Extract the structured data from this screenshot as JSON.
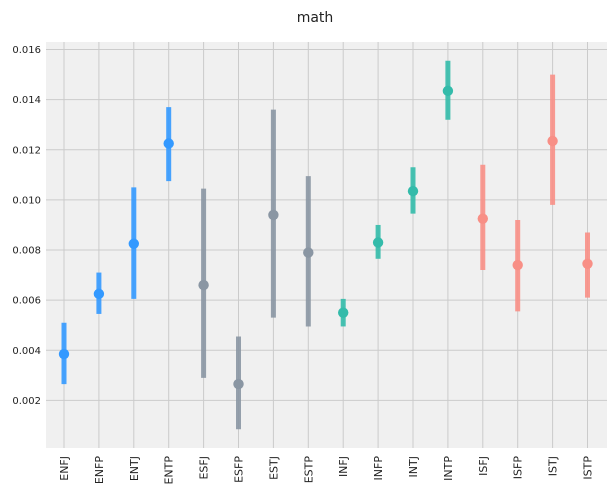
{
  "chart_data": {
    "type": "scatter",
    "title": "math",
    "xlabel": "",
    "ylabel": "",
    "ylim": [
      0.0001,
      0.0163
    ],
    "grid": true,
    "legend": "none",
    "yticks": [
      0.002,
      0.004,
      0.006,
      0.008,
      0.01,
      0.012,
      0.014,
      0.016
    ],
    "ytick_labels": [
      "0.002",
      "0.004",
      "0.006",
      "0.008",
      "0.010",
      "0.012",
      "0.014",
      "0.016"
    ],
    "categories": [
      "ENFJ",
      "ENFP",
      "ENTJ",
      "ENTP",
      "ESFJ",
      "ESFP",
      "ESTJ",
      "ESTP",
      "INFJ",
      "INFP",
      "INTJ",
      "INTP",
      "ISFJ",
      "ISFP",
      "ISTJ",
      "ISTP"
    ],
    "values": [
      0.00385,
      0.00625,
      0.00825,
      0.01225,
      0.0066,
      0.00265,
      0.0094,
      0.0079,
      0.0055,
      0.0083,
      0.01035,
      0.01435,
      0.00925,
      0.0074,
      0.01235,
      0.00745
    ],
    "lower": [
      0.00265,
      0.00545,
      0.00605,
      0.01075,
      0.0029,
      0.00085,
      0.0053,
      0.00495,
      0.00495,
      0.00765,
      0.00945,
      0.0132,
      0.0072,
      0.00555,
      0.0098,
      0.0061
    ],
    "upper": [
      0.0051,
      0.0071,
      0.0105,
      0.0137,
      0.01045,
      0.00455,
      0.0136,
      0.01095,
      0.00605,
      0.009,
      0.0113,
      0.01555,
      0.0114,
      0.0092,
      0.015,
      0.0087
    ],
    "colors": [
      "#3399ff",
      "#3399ff",
      "#3399ff",
      "#3399ff",
      "#8a96a3",
      "#8a96a3",
      "#8a96a3",
      "#8a96a3",
      "#33bbaa",
      "#33bbaa",
      "#33bbaa",
      "#33bbaa",
      "#f88f86",
      "#f88f86",
      "#f88f86",
      "#f88f86"
    ]
  }
}
